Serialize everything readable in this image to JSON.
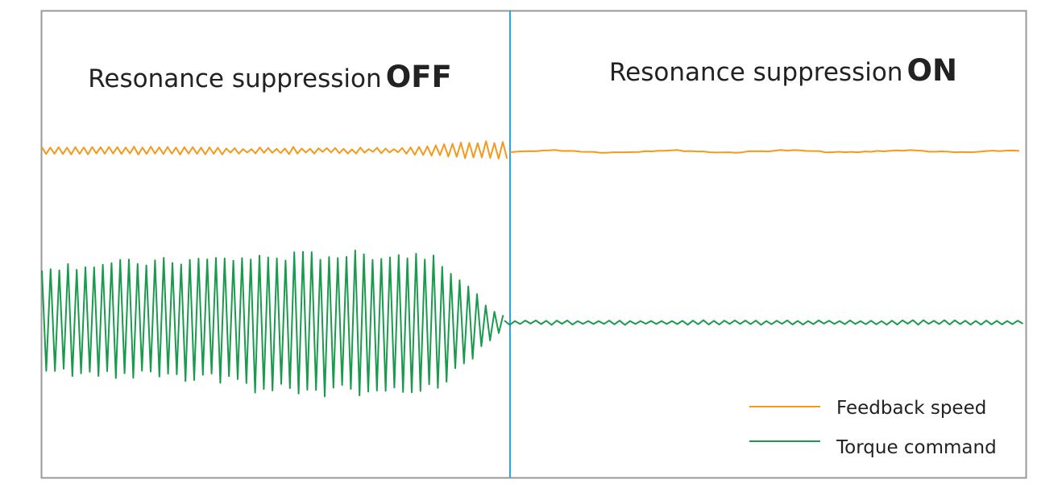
{
  "panels": [
    {
      "title": "Resonance suppression",
      "emphasis": "OFF"
    },
    {
      "title": "Resonance suppression",
      "emphasis": "ON"
    }
  ],
  "legend": [
    {
      "label": "Feedback speed"
    },
    {
      "label": "Torque command"
    }
  ]
}
